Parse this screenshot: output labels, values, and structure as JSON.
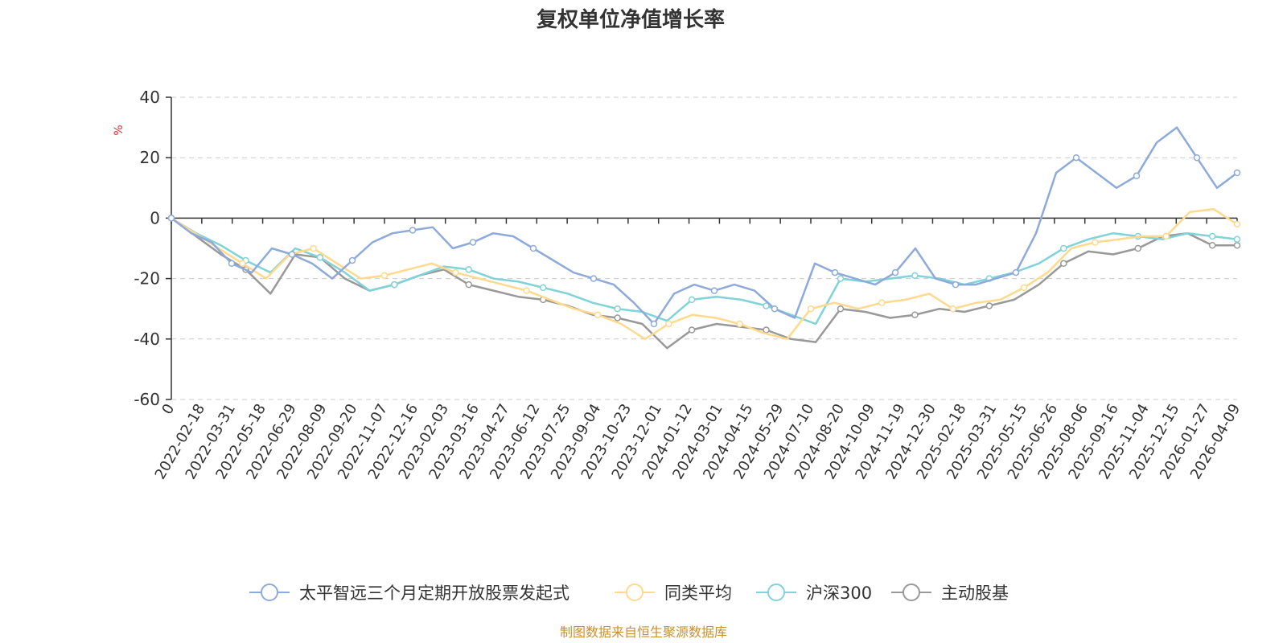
{
  "chart_data": {
    "type": "line",
    "title": "复权单位净值增长率",
    "ylabel": "%",
    "ylim": [
      -60,
      40
    ],
    "yticks": [
      40,
      20,
      0,
      -20,
      -40,
      -60
    ],
    "grid": true,
    "legend_position": "bottom",
    "x_tick_labels": [
      "0",
      "2022-02-18",
      "2022-03-31",
      "2022-05-18",
      "2022-06-29",
      "2022-08-09",
      "2022-09-20",
      "2022-11-07",
      "2022-12-16",
      "2023-02-03",
      "2023-03-16",
      "2023-04-27",
      "2023-06-12",
      "2023-07-25",
      "2023-09-04",
      "2023-10-23",
      "2023-12-01",
      "2024-01-12",
      "2024-03-01",
      "2024-04-15",
      "2024-05-29",
      "2024-07-10",
      "2024-08-20",
      "2024-10-09",
      "2024-11-19",
      "2024-12-30",
      "2025-02-18",
      "2025-03-31",
      "2025-05-15",
      "2025-06-26",
      "2025-08-06",
      "2025-09-16",
      "2025-11-04",
      "2025-12-15",
      "2026-01-27",
      "2026-04-09"
    ],
    "series": [
      {
        "name": "太平智远三个月定期开放股票发起式",
        "color": "#8eaadb",
        "values": [
          0,
          -5,
          -8,
          -15,
          -18,
          -10,
          -12,
          -15,
          -20,
          -14,
          -8,
          -5,
          -4,
          -3,
          -10,
          -8,
          -5,
          -6,
          -10,
          -14,
          -18,
          -20,
          -22,
          -28,
          -35,
          -25,
          -22,
          -24,
          -22,
          -24,
          -30,
          -33,
          -15,
          -18,
          -20,
          -22,
          -18,
          -10,
          -20,
          -22,
          -22,
          -20,
          -18,
          -5,
          15,
          20,
          15,
          10,
          14,
          25,
          30,
          20,
          10,
          15
        ]
      },
      {
        "name": "同类平均",
        "color": "#ffd98c",
        "values": [
          0,
          -5,
          -10,
          -15,
          -20,
          -12,
          -10,
          -15,
          -20,
          -19,
          -17,
          -15,
          -18,
          -20,
          -22,
          -24,
          -27,
          -30,
          -32,
          -35,
          -40,
          -35,
          -32,
          -33,
          -35,
          -38,
          -40,
          -30,
          -28,
          -30,
          -28,
          -27,
          -25,
          -30,
          -28,
          -27,
          -23,
          -18,
          -10,
          -8,
          -7,
          -6,
          -6,
          2,
          3,
          -2
        ]
      },
      {
        "name": "沪深300",
        "color": "#7fd3d9",
        "values": [
          0,
          -5,
          -9,
          -14,
          -18,
          -10,
          -13,
          -18,
          -24,
          -22,
          -19,
          -16,
          -17,
          -20,
          -21,
          -23,
          -25,
          -28,
          -30,
          -31,
          -34,
          -27,
          -26,
          -27,
          -29,
          -32,
          -35,
          -20,
          -21,
          -20,
          -19,
          -20,
          -22,
          -20,
          -18,
          -15,
          -10,
          -7,
          -5,
          -6,
          -7,
          -5,
          -6,
          -7
        ]
      },
      {
        "name": "主动股基",
        "color": "#999999",
        "values": [
          0,
          -6,
          -12,
          -17,
          -25,
          -12,
          -13,
          -20,
          -24,
          -22,
          -19,
          -17,
          -22,
          -24,
          -26,
          -27,
          -29,
          -32,
          -33,
          -35,
          -43,
          -37,
          -35,
          -36,
          -37,
          -40,
          -41,
          -30,
          -31,
          -33,
          -32,
          -30,
          -31,
          -29,
          -27,
          -22,
          -15,
          -11,
          -12,
          -10,
          -6,
          -5,
          -9,
          -9
        ]
      }
    ]
  },
  "source_text": "制图数据来自恒生聚源数据库"
}
